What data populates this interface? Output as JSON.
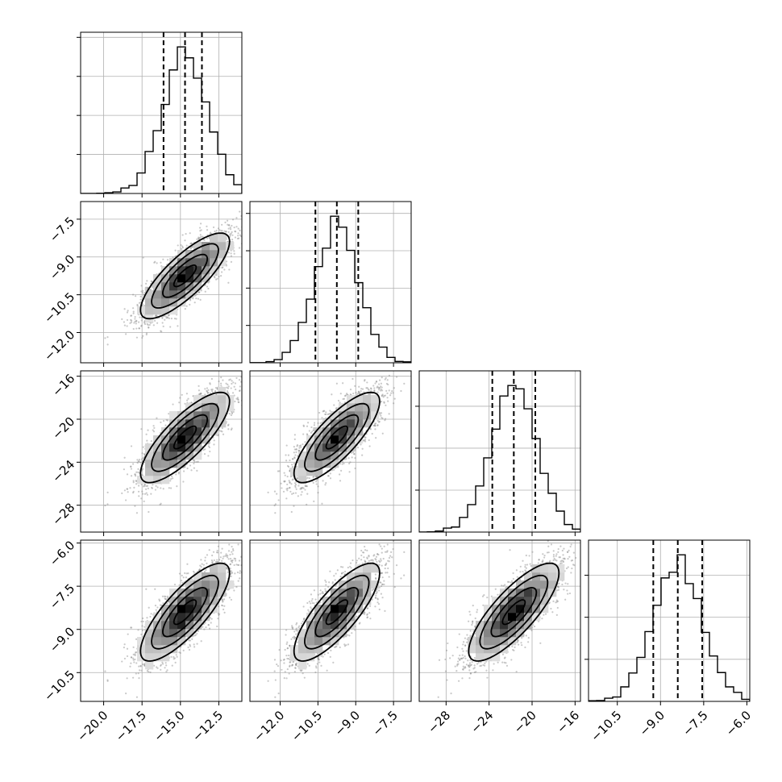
{
  "chart_data": {
    "type": "corner",
    "title": "",
    "variables": [
      {
        "mean": -14.7,
        "sd": 1.45,
        "range": [
          -21.5,
          -11.0
        ],
        "ticks": [
          -20.0,
          -17.5,
          -15.0,
          -12.5
        ],
        "tick_labels": [
          "−20.0",
          "−17.5",
          "−15.0",
          "−12.5"
        ],
        "quantiles": [
          -16.1,
          -14.7,
          -13.6
        ]
      },
      {
        "mean": -9.75,
        "sd": 0.85,
        "range": [
          -13.2,
          -6.8
        ],
        "ticks": [
          -12.0,
          -10.5,
          -9.0,
          -7.5
        ],
        "tick_labels": [
          "−12.0",
          "−10.5",
          "−9.0",
          "−7.5"
        ],
        "quantiles": [
          -10.6,
          -9.75,
          -8.9
        ]
      },
      {
        "mean": -21.7,
        "sd": 2.1,
        "range": [
          -30.5,
          -15.5
        ],
        "ticks": [
          -28,
          -24,
          -20,
          -16
        ],
        "tick_labels": [
          "−28",
          "−24",
          "−20",
          "−16"
        ],
        "quantiles": [
          -23.7,
          -21.7,
          -19.7
        ]
      },
      {
        "mean": -8.4,
        "sd": 0.85,
        "range": [
          -11.5,
          -5.9
        ],
        "ticks": [
          -10.5,
          -9.0,
          -7.5,
          -6.0
        ],
        "tick_labels": [
          "−10.5",
          "−9.0",
          "−7.5",
          "−6.0"
        ],
        "quantiles": [
          -9.25,
          -8.4,
          -7.55
        ]
      }
    ],
    "correlation": 0.8,
    "contour_levels_sigma": [
      0.5,
      1.0,
      1.5,
      2.0
    ],
    "n_samples": 5000,
    "hist_bins": 20,
    "grid": true,
    "colors": {
      "line": "#000000",
      "points": "#888888",
      "grid": "#b0b0b0"
    }
  }
}
